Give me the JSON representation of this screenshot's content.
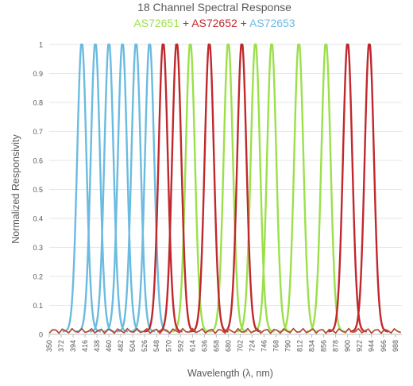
{
  "chart_data": {
    "type": "line",
    "title": "18 Channel Spectral Response",
    "subtitle_parts": [
      {
        "text": "AS72651",
        "color": "#9be04a"
      },
      {
        "text": " + ",
        "color": "#595959"
      },
      {
        "text": "AS72652",
        "color": "#c0282d"
      },
      {
        "text": " + ",
        "color": "#595959"
      },
      {
        "text": "AS72653",
        "color": "#6bbbe0"
      }
    ],
    "xlabel": "Wavelength (λ, nm)",
    "ylabel": "Normalized Responsivity",
    "xlim": [
      350,
      1000
    ],
    "ylim": [
      0,
      1
    ],
    "grid": true,
    "x_ticks": [
      "350",
      "372",
      "394",
      "416",
      "438",
      "460",
      "482",
      "504",
      "526",
      "548",
      "570",
      "592",
      "614",
      "636",
      "658",
      "680",
      "702",
      "724",
      "746",
      "768",
      "790",
      "812",
      "834",
      "856",
      "878",
      "900",
      "922",
      "944",
      "966",
      "988"
    ],
    "y_ticks": [
      "0",
      "0.1",
      "0.2",
      "0.3",
      "0.4",
      "0.5",
      "0.6",
      "0.7",
      "0.8",
      "0.9",
      "1"
    ],
    "colors": {
      "AS72651": "#9be04a",
      "AS72652": "#c0282d",
      "AS72653": "#6bbbe0",
      "axis": "#bfbfbf",
      "grid": "#e6e6e6",
      "text": "#595959"
    },
    "series": [
      {
        "group": "AS72653",
        "peak_nm": 410,
        "fwhm_nm": 20,
        "peak": 1.0
      },
      {
        "group": "AS72653",
        "peak_nm": 435,
        "fwhm_nm": 20,
        "peak": 1.0
      },
      {
        "group": "AS72653",
        "peak_nm": 460,
        "fwhm_nm": 20,
        "peak": 1.0
      },
      {
        "group": "AS72653",
        "peak_nm": 485,
        "fwhm_nm": 20,
        "peak": 1.0
      },
      {
        "group": "AS72653",
        "peak_nm": 510,
        "fwhm_nm": 20,
        "peak": 1.0
      },
      {
        "group": "AS72653",
        "peak_nm": 535,
        "fwhm_nm": 20,
        "peak": 1.0
      },
      {
        "group": "AS72652",
        "peak_nm": 560,
        "fwhm_nm": 20,
        "peak": 1.0
      },
      {
        "group": "AS72652",
        "peak_nm": 585,
        "fwhm_nm": 20,
        "peak": 1.0
      },
      {
        "group": "AS72651",
        "peak_nm": 610,
        "fwhm_nm": 20,
        "peak": 1.0
      },
      {
        "group": "AS72652",
        "peak_nm": 645,
        "fwhm_nm": 20,
        "peak": 1.0
      },
      {
        "group": "AS72651",
        "peak_nm": 680,
        "fwhm_nm": 20,
        "peak": 1.0
      },
      {
        "group": "AS72652",
        "peak_nm": 705,
        "fwhm_nm": 20,
        "peak": 1.0
      },
      {
        "group": "AS72651",
        "peak_nm": 730,
        "fwhm_nm": 20,
        "peak": 1.0
      },
      {
        "group": "AS72651",
        "peak_nm": 760,
        "fwhm_nm": 20,
        "peak": 1.0
      },
      {
        "group": "AS72651",
        "peak_nm": 810,
        "fwhm_nm": 20,
        "peak": 1.0
      },
      {
        "group": "AS72651",
        "peak_nm": 860,
        "fwhm_nm": 20,
        "peak": 1.0
      },
      {
        "group": "AS72652",
        "peak_nm": 900,
        "fwhm_nm": 20,
        "peak": 1.0
      },
      {
        "group": "AS72652",
        "peak_nm": 940,
        "fwhm_nm": 20,
        "peak": 1.0
      }
    ]
  }
}
